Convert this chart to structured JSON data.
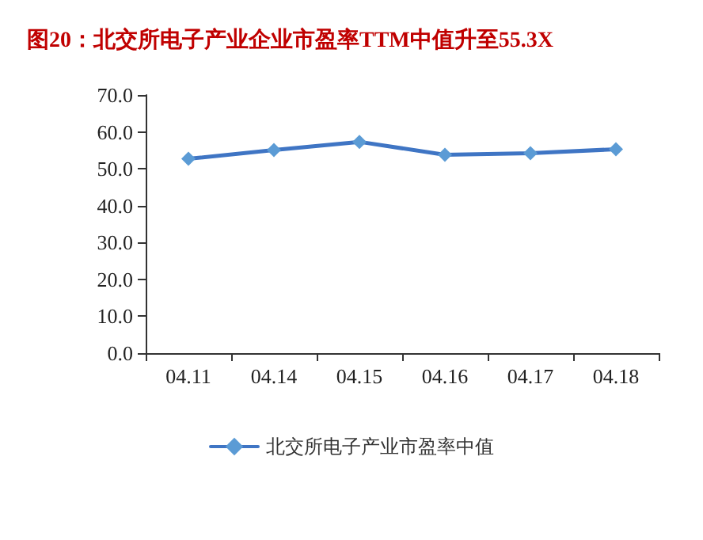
{
  "chart_data": {
    "type": "line",
    "title": "图20：北交所电子产业企业市盈率TTM中值升至55.3X",
    "categories": [
      "04.11",
      "04.14",
      "04.15",
      "04.16",
      "04.17",
      "04.18"
    ],
    "series": [
      {
        "name": "北交所电子产业市盈率中值",
        "color": "#3f75c4",
        "values": [
          52.7,
          55.1,
          57.3,
          53.8,
          54.2,
          55.3
        ]
      }
    ],
    "ylim": [
      0,
      70
    ],
    "yticks": [
      {
        "value": 0,
        "label": "0.0"
      },
      {
        "value": 10,
        "label": "10.0"
      },
      {
        "value": 20,
        "label": "20.0"
      },
      {
        "value": 30,
        "label": "30.0"
      },
      {
        "value": 40,
        "label": "40.0"
      },
      {
        "value": 50,
        "label": "50.0"
      },
      {
        "value": 60,
        "label": "60.0"
      },
      {
        "value": 70,
        "label": "70.0"
      }
    ],
    "grid": false,
    "legend": "bottom",
    "marker": "diamond",
    "line_style": "solid"
  }
}
